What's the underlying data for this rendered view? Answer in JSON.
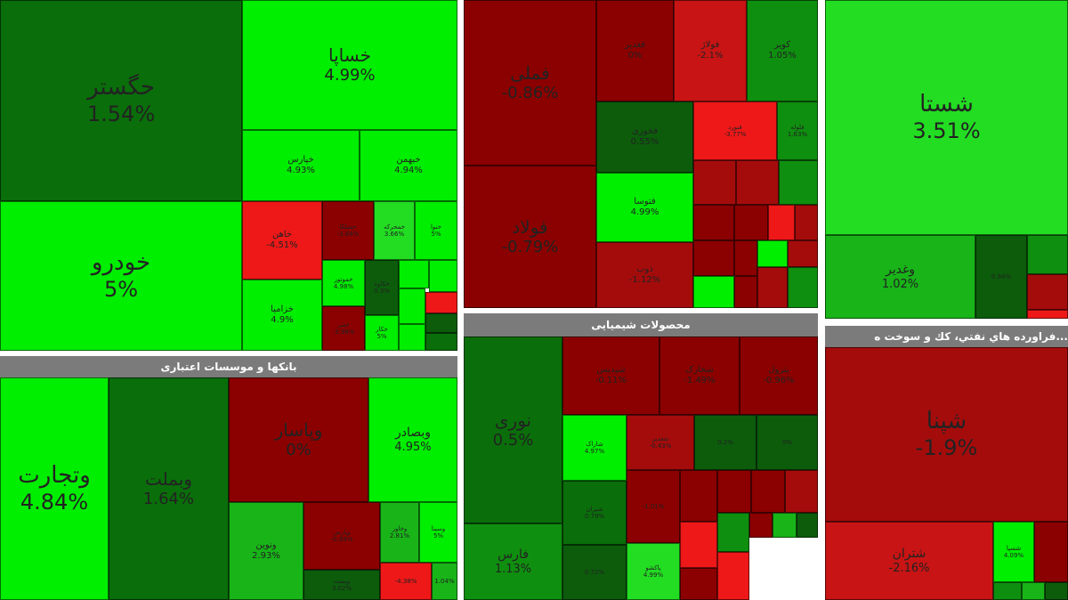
{
  "panels": {
    "auto": {
      "tiles": [
        {
          "name": "حگستر",
          "pct": "1.54%"
        },
        {
          "name": "خساپا",
          "pct": "4.99%"
        },
        {
          "name": "خودرو",
          "pct": "5%"
        },
        {
          "name": "خپارس",
          "pct": "4.93%"
        },
        {
          "name": "خبهمن",
          "pct": "4.94%"
        },
        {
          "name": "خاهن",
          "pct": "-4.51%"
        },
        {
          "name": "خشلکا",
          "pct": "-3.84%"
        },
        {
          "name": "خمحرکه",
          "pct": "3.66%"
        },
        {
          "name": "خنوا",
          "pct": "5%"
        },
        {
          "name": "خزامیا",
          "pct": "4.9%"
        },
        {
          "name": "خموتور",
          "pct": "4.98%"
        },
        {
          "name": "خکاوه",
          "pct": "0.3%"
        },
        {
          "name": "",
          "pct": ""
        },
        {
          "name": "",
          "pct": ""
        },
        {
          "name": "",
          "pct": ""
        },
        {
          "name": "",
          "pct": ""
        },
        {
          "name": "خفنر",
          "pct": "-3.98%"
        },
        {
          "name": "خکار",
          "pct": "5%"
        }
      ]
    },
    "metals": {
      "tiles": [
        {
          "name": "فملی",
          "pct": "-0.86%"
        },
        {
          "name": "فولاد",
          "pct": "-0.79%"
        },
        {
          "name": "فغدیر",
          "pct": "0%"
        },
        {
          "name": "فولاژ",
          "pct": "-2.1%"
        },
        {
          "name": "کویر",
          "pct": "1.05%"
        },
        {
          "name": "فخوزی",
          "pct": "0.55%"
        },
        {
          "name": "فنورد",
          "pct": "-3.77%"
        },
        {
          "name": "فلوله",
          "pct": "1.63%"
        },
        {
          "name": "فتوسا",
          "pct": "4.99%"
        },
        {
          "name": "ذوب",
          "pct": "-1.12%"
        },
        {
          "name": "",
          "pct": ""
        },
        {
          "name": "",
          "pct": ""
        },
        {
          "name": "",
          "pct": ""
        },
        {
          "name": "",
          "pct": ""
        },
        {
          "name": "",
          "pct": ""
        },
        {
          "name": "",
          "pct": ""
        },
        {
          "name": "",
          "pct": ""
        },
        {
          "name": "",
          "pct": ""
        },
        {
          "name": "",
          "pct": ""
        },
        {
          "name": "",
          "pct": ""
        },
        {
          "name": "",
          "pct": ""
        },
        {
          "name": "",
          "pct": ""
        },
        {
          "name": "",
          "pct": ""
        },
        {
          "name": "",
          "pct": ""
        }
      ]
    },
    "mining": {
      "tiles": [
        {
          "name": "شستا",
          "pct": "3.51%"
        },
        {
          "name": "وغدیر",
          "pct": "1.02%"
        },
        {
          "name": "",
          "pct": "0.94%"
        },
        {
          "name": "",
          "pct": ""
        },
        {
          "name": "",
          "pct": ""
        },
        {
          "name": "",
          "pct": ""
        }
      ]
    },
    "banks": {
      "title": "بانکها و موسسات اعتباری",
      "tiles": [
        {
          "name": "وتجارت",
          "pct": "4.84%"
        },
        {
          "name": "وبملت",
          "pct": "1.64%"
        },
        {
          "name": "وبصادر",
          "pct": "4.95%"
        },
        {
          "name": "وپاسار",
          "pct": "0%"
        },
        {
          "name": "ونوین",
          "pct": "2.93%"
        },
        {
          "name": "وپارس",
          "pct": "-0.89%"
        },
        {
          "name": "وخاور",
          "pct": "2.81%"
        },
        {
          "name": "وسینا",
          "pct": "5%"
        },
        {
          "name": "وپست",
          "pct": "3.02%"
        },
        {
          "name": "",
          "pct": "-4.38%"
        },
        {
          "name": "",
          "pct": "1.04%"
        }
      ]
    },
    "chem": {
      "title": "محصولات شیمیایی",
      "tiles": [
        {
          "name": "نوری",
          "pct": "0.5%"
        },
        {
          "name": "فارس",
          "pct": "1.13%"
        },
        {
          "name": "شپدیس",
          "pct": "-0.11%"
        },
        {
          "name": "شخارک",
          "pct": "-1.49%"
        },
        {
          "name": "پترول",
          "pct": "-0.96%"
        },
        {
          "name": "شاراک",
          "pct": "4.97%"
        },
        {
          "name": "شغدیر",
          "pct": "-0.43%"
        },
        {
          "name": "",
          "pct": "0.2%"
        },
        {
          "name": "",
          "pct": "0%"
        },
        {
          "name": "شیران",
          "pct": "0.79%"
        },
        {
          "name": "",
          "pct": "-1.01%"
        },
        {
          "name": "پاکشو",
          "pct": "4.99%"
        },
        {
          "name": "",
          "pct": "0.72%"
        },
        {
          "name": "",
          "pct": ""
        },
        {
          "name": "",
          "pct": ""
        },
        {
          "name": "",
          "pct": ""
        },
        {
          "name": "",
          "pct": ""
        },
        {
          "name": "",
          "pct": ""
        },
        {
          "name": "",
          "pct": ""
        },
        {
          "name": "",
          "pct": ""
        },
        {
          "name": "",
          "pct": ""
        },
        {
          "name": "",
          "pct": ""
        },
        {
          "name": "",
          "pct": ""
        },
        {
          "name": "",
          "pct": ""
        }
      ]
    },
    "refinery": {
      "title": "...فراورده هاي نفتي، كك و سوخت ه",
      "tiles": [
        {
          "name": "شپنا",
          "pct": "-1.9%"
        },
        {
          "name": "شتران",
          "pct": "-2.16%"
        },
        {
          "name": "شسپا",
          "pct": "4.09%"
        },
        {
          "name": "",
          "pct": ""
        },
        {
          "name": "",
          "pct": ""
        },
        {
          "name": "",
          "pct": ""
        },
        {
          "name": "",
          "pct": ""
        }
      ]
    }
  }
}
